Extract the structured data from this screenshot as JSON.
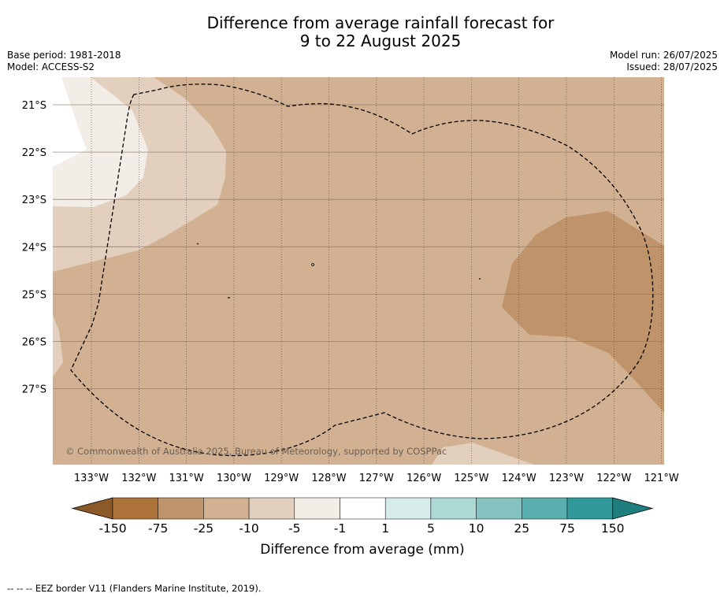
{
  "title_line1": "Difference from average rainfall forecast for",
  "title_line2": "9 to 22 August 2025",
  "meta_left": {
    "base_period": "Base period: 1981-2018",
    "model": "Model: ACCESS-S2"
  },
  "meta_right": {
    "model_run": "Model run: 26/07/2025",
    "issued": "Issued: 28/07/2025"
  },
  "copyright": "© Commonwealth of Australia 2025, Bureau of Meteorology, supported by COSPPac",
  "lat_labels": [
    "21°S",
    "22°S",
    "23°S",
    "24°S",
    "25°S",
    "26°S",
    "27°S"
  ],
  "lon_labels": [
    "133°W",
    "132°W",
    "131°W",
    "130°W",
    "129°W",
    "128°W",
    "127°W",
    "126°W",
    "125°W",
    "124°W",
    "123°W",
    "122°W",
    "121°W"
  ],
  "colorbar": {
    "title": "Difference from average (mm)",
    "ticks": [
      "-150",
      "-75",
      "-25",
      "-10",
      "-5",
      "-1",
      "1",
      "5",
      "10",
      "25",
      "75",
      "150"
    ],
    "colors": {
      "below_min": "#8c5a28",
      "bins": [
        "#ae733b",
        "#c0946b",
        "#d1b191",
        "#e3cfbd",
        "#f2ede6",
        "#ffffff",
        "#d5ecea",
        "#acd8d6",
        "#84c3c1",
        "#5bafae",
        "#32999a"
      ],
      "above_max": "#1e7f7e"
    }
  },
  "footer": "--  --  -- EEZ border V11 (Flanders Marine Institute, 2019)."
}
